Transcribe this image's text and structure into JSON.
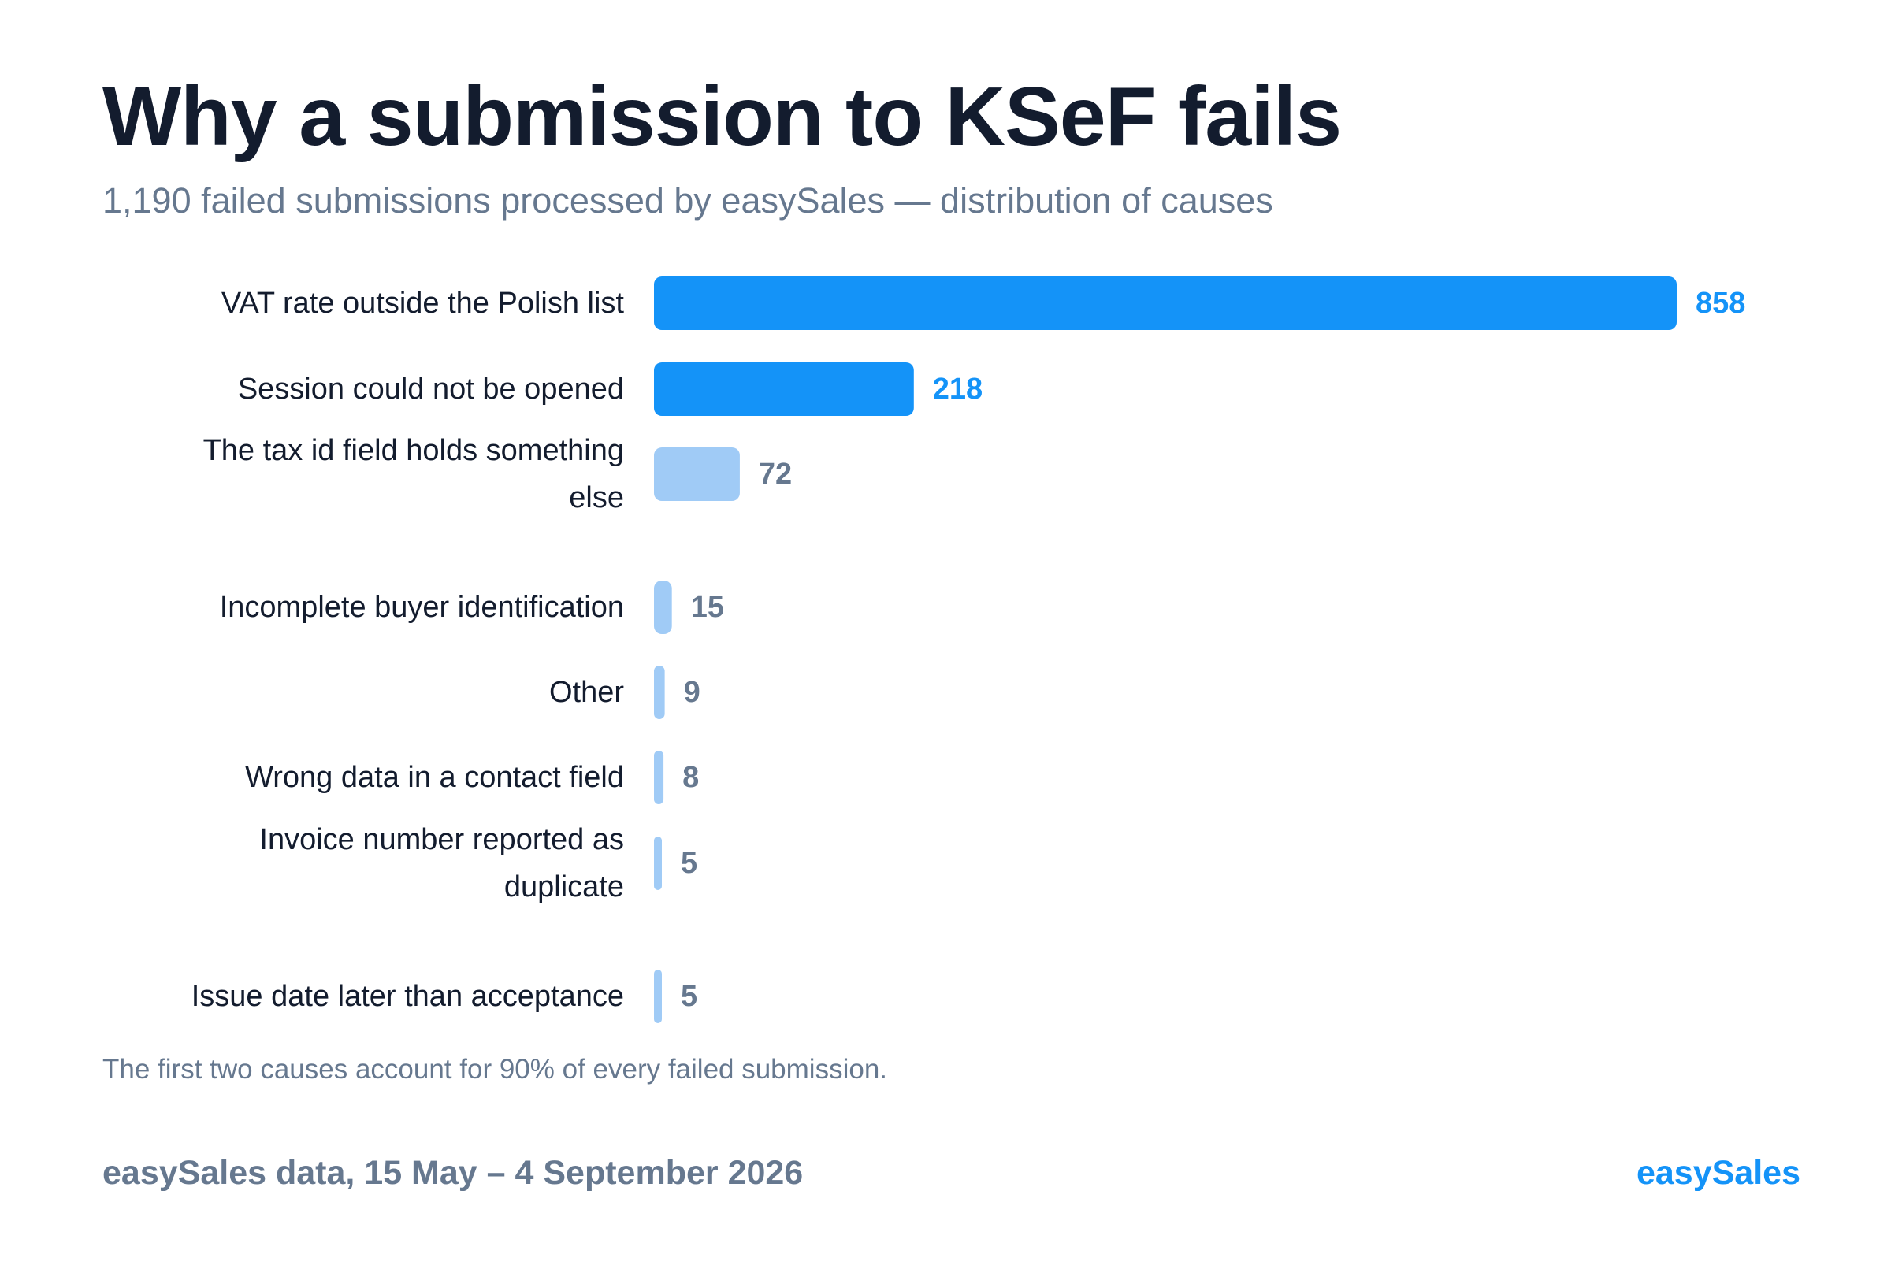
{
  "title": "Why a submission to KSeF fails",
  "subtitle": "1,190 failed submissions processed by easySales — distribution of causes",
  "note": "The first two causes account for 90% of every failed submission.",
  "source": "easySales data, 15 May – 4 September 2026",
  "brand": "easySales",
  "colors": {
    "primary": "#1493f8",
    "secondary": "#a0cbf6",
    "value_secondary": "#66788f",
    "text": "#131c2e",
    "muted": "#66788f"
  },
  "chart_data": {
    "type": "bar",
    "orientation": "horizontal",
    "title": "Why a submission to KSeF fails",
    "subtitle": "1,190 failed submissions processed by easySales — distribution of causes",
    "grid": false,
    "legend": "none",
    "xlim": [
      0,
      858
    ],
    "categories": [
      [
        "VAT rate outside the Polish list"
      ],
      [
        "Session could not be opened"
      ],
      [
        "The tax id field holds something",
        "else"
      ],
      [
        "Incomplete buyer identification"
      ],
      [
        "Other"
      ],
      [
        "Wrong data in a contact field"
      ],
      [
        "Invoice number reported as",
        "duplicate"
      ],
      [
        "Issue date later than acceptance"
      ]
    ],
    "values": [
      858,
      218,
      72,
      15,
      9,
      8,
      5,
      5
    ],
    "highlight": [
      true,
      true,
      false,
      false,
      false,
      false,
      false,
      false
    ]
  }
}
